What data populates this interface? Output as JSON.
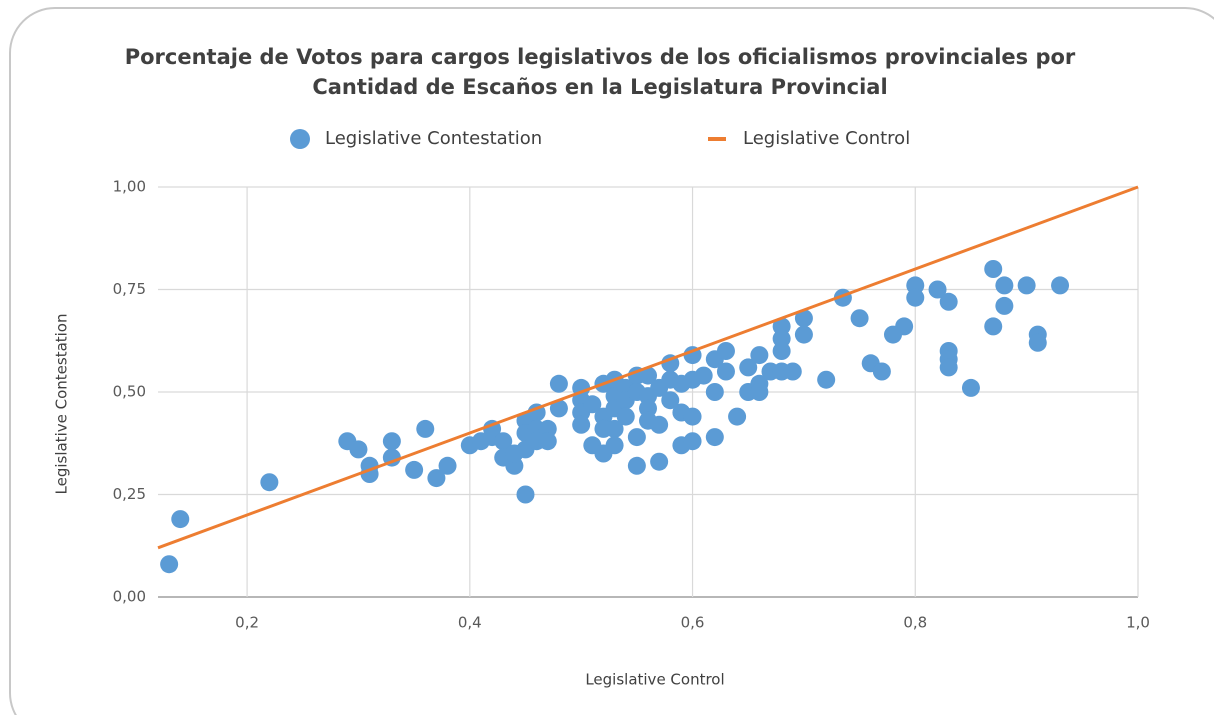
{
  "chart_data": {
    "type": "scatter",
    "title": [
      "Porcentaje de Votos para cargos legislativos de los oficialismos provinciales por",
      "Cantidad de Escaños en la Legislatura Provincial"
    ],
    "x_label": "Legislative Control",
    "y_label": "Legislative Contestation",
    "xlim": [
      0.12,
      1.0
    ],
    "ylim": [
      0,
      1.0
    ],
    "xticks": [
      {
        "value": 0.2,
        "label": "0,2"
      },
      {
        "value": 0.4,
        "label": "0,4"
      },
      {
        "value": 0.6,
        "label": "0,6"
      },
      {
        "value": 0.8,
        "label": "0,8"
      },
      {
        "value": 1.0,
        "label": "1,0"
      }
    ],
    "yticks": [
      {
        "value": 0,
        "label": "0,00"
      },
      {
        "value": 0.25,
        "label": "0,25"
      },
      {
        "value": 0.5,
        "label": "0,50"
      },
      {
        "value": 0.75,
        "label": "0,75"
      },
      {
        "value": 1.0,
        "label": "1,00"
      }
    ],
    "grid": true,
    "legend": "top",
    "series": [
      {
        "name": "Legislative Contestation",
        "type": "scatter",
        "color": "#5b9bd5",
        "x": [
          0.13,
          0.14,
          0.22,
          0.29,
          0.3,
          0.31,
          0.31,
          0.33,
          0.33,
          0.35,
          0.36,
          0.37,
          0.38,
          0.4,
          0.41,
          0.42,
          0.42,
          0.43,
          0.43,
          0.44,
          0.44,
          0.45,
          0.45,
          0.45,
          0.45,
          0.46,
          0.46,
          0.46,
          0.47,
          0.47,
          0.48,
          0.48,
          0.5,
          0.5,
          0.5,
          0.5,
          0.51,
          0.51,
          0.52,
          0.52,
          0.52,
          0.52,
          0.53,
          0.53,
          0.53,
          0.53,
          0.53,
          0.54,
          0.54,
          0.54,
          0.55,
          0.55,
          0.55,
          0.55,
          0.56,
          0.56,
          0.56,
          0.56,
          0.57,
          0.57,
          0.57,
          0.58,
          0.58,
          0.58,
          0.59,
          0.59,
          0.59,
          0.6,
          0.6,
          0.6,
          0.6,
          0.61,
          0.62,
          0.62,
          0.62,
          0.63,
          0.63,
          0.64,
          0.65,
          0.65,
          0.66,
          0.66,
          0.66,
          0.67,
          0.68,
          0.68,
          0.68,
          0.68,
          0.69,
          0.7,
          0.7,
          0.72,
          0.735,
          0.75,
          0.76,
          0.77,
          0.78,
          0.79,
          0.8,
          0.8,
          0.82,
          0.83,
          0.83,
          0.83,
          0.83,
          0.85,
          0.87,
          0.87,
          0.88,
          0.88,
          0.9,
          0.91,
          0.91,
          0.93
        ],
        "values": [
          0.08,
          0.19,
          0.28,
          0.38,
          0.36,
          0.3,
          0.32,
          0.38,
          0.34,
          0.31,
          0.41,
          0.29,
          0.32,
          0.37,
          0.38,
          0.41,
          0.39,
          0.38,
          0.34,
          0.32,
          0.35,
          0.25,
          0.43,
          0.4,
          0.36,
          0.45,
          0.41,
          0.38,
          0.41,
          0.38,
          0.52,
          0.46,
          0.51,
          0.48,
          0.45,
          0.42,
          0.47,
          0.37,
          0.52,
          0.44,
          0.41,
          0.35,
          0.53,
          0.49,
          0.46,
          0.41,
          0.37,
          0.51,
          0.48,
          0.44,
          0.54,
          0.5,
          0.39,
          0.32,
          0.54,
          0.49,
          0.46,
          0.43,
          0.51,
          0.42,
          0.33,
          0.57,
          0.53,
          0.48,
          0.52,
          0.45,
          0.37,
          0.59,
          0.53,
          0.44,
          0.38,
          0.54,
          0.58,
          0.5,
          0.39,
          0.6,
          0.55,
          0.44,
          0.56,
          0.5,
          0.59,
          0.52,
          0.5,
          0.55,
          0.66,
          0.63,
          0.6,
          0.55,
          0.55,
          0.68,
          0.64,
          0.53,
          0.73,
          0.68,
          0.57,
          0.55,
          0.64,
          0.66,
          0.76,
          0.73,
          0.75,
          0.72,
          0.6,
          0.58,
          0.56,
          0.51,
          0.8,
          0.66,
          0.76,
          0.71,
          0.76,
          0.64,
          0.62,
          0.76
        ]
      },
      {
        "name": "Legislative Control",
        "type": "line",
        "color": "#ed7d31",
        "x": [
          0.12,
          1.0
        ],
        "values": [
          0.12,
          1.0
        ]
      }
    ]
  }
}
